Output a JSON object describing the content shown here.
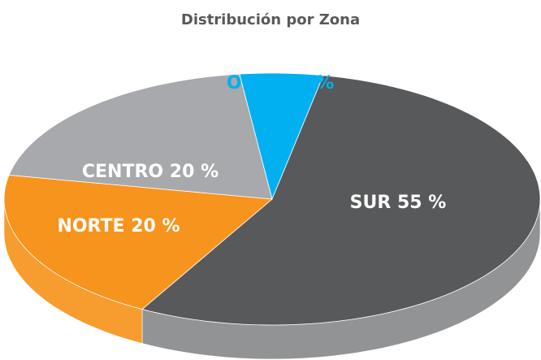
{
  "chart_data": {
    "type": "pie",
    "title": "Distribución por Zona",
    "categories": [
      "OESTE",
      "SUR",
      "NORTE",
      "CENTRO"
    ],
    "values": [
      5,
      55,
      20,
      20
    ],
    "value_labels": [
      "5 %",
      "55 %",
      "20 %",
      "20 %"
    ],
    "colors": [
      "#00b0f0",
      "#58595b",
      "#f7941d",
      "#a7a9ac"
    ]
  }
}
